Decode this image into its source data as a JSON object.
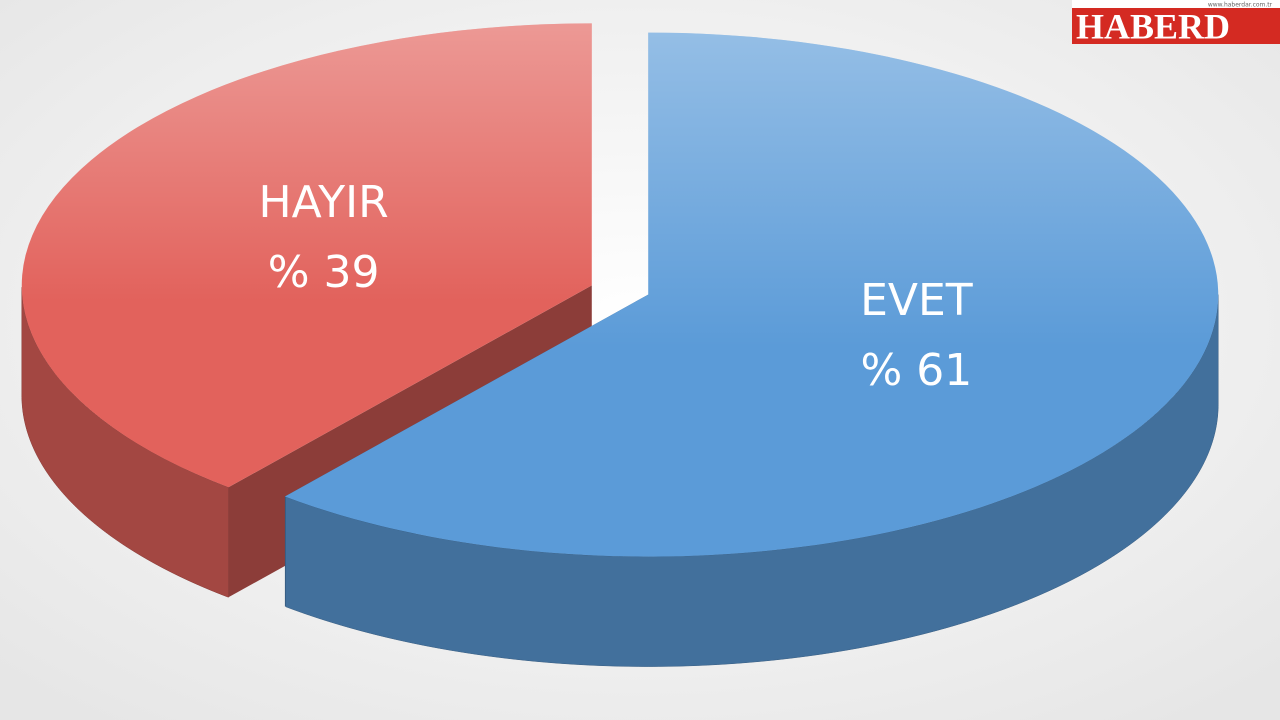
{
  "chart_data": {
    "type": "pie",
    "categories": [
      "HAYIR",
      "EVET"
    ],
    "values": [
      39,
      61
    ],
    "value_labels": [
      "% 39",
      "% 61"
    ],
    "colors": [
      "#e2625c",
      "#5b9bd8"
    ]
  },
  "logo": {
    "name": "HABERD",
    "url": "www.haberdar.com.tr"
  }
}
